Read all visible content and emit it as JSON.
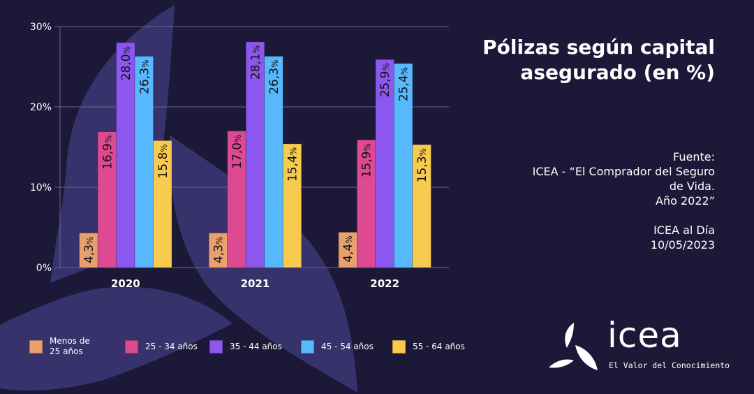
{
  "title": "Pólizas según capital asegurado (en %)",
  "title_lines": [
    "Pólizas según capital",
    "asegurado (en %)"
  ],
  "source": {
    "lines": [
      "Fuente:",
      "ICEA - “El Comprador del Seguro",
      "de Vida.",
      "Año 2022”"
    ],
    "publication": "ICEA al Día",
    "date": "10/05/2023"
  },
  "logo": {
    "word": "icea",
    "tagline": "El Valor del Conocimiento"
  },
  "colors": {
    "background": "#1b1838",
    "watermark": "#37326b",
    "grid": "#6b6790"
  },
  "chart_data": {
    "type": "bar",
    "title": "Pólizas según capital asegurado (en %)",
    "xlabel": "",
    "ylabel": "",
    "categories": [
      "2020",
      "2021",
      "2022"
    ],
    "ylim": [
      0,
      30
    ],
    "yticks": [
      0,
      10,
      20,
      30
    ],
    "ytick_labels": [
      "0%",
      "10%",
      "20%",
      "30%"
    ],
    "grid": true,
    "legend_position": "bottom",
    "series": [
      {
        "name": "Menos de\n25 años",
        "color": "#e8a06e",
        "values": [
          4.3,
          4.3,
          4.4
        ],
        "labels": [
          "4,3",
          "4,3",
          "4,4"
        ]
      },
      {
        "name": "25 - 34 años",
        "color": "#dd4a91",
        "values": [
          16.9,
          17.0,
          15.9
        ],
        "labels": [
          "16,9",
          "17,0",
          "15,9"
        ]
      },
      {
        "name": "35 - 44 años",
        "color": "#8b57ee",
        "values": [
          28.0,
          28.1,
          25.9
        ],
        "labels": [
          "28,0",
          "28,1",
          "25,9"
        ]
      },
      {
        "name": "45 - 54 años",
        "color": "#58b8fd",
        "values": [
          26.3,
          26.3,
          25.4
        ],
        "labels": [
          "26,3",
          "26,3",
          "25,4"
        ]
      },
      {
        "name": "55 - 64 años",
        "color": "#f7cb4e",
        "values": [
          15.8,
          15.4,
          15.3
        ],
        "labels": [
          "15,8",
          "15,4",
          "15,3"
        ]
      }
    ],
    "value_suffix": "%"
  }
}
